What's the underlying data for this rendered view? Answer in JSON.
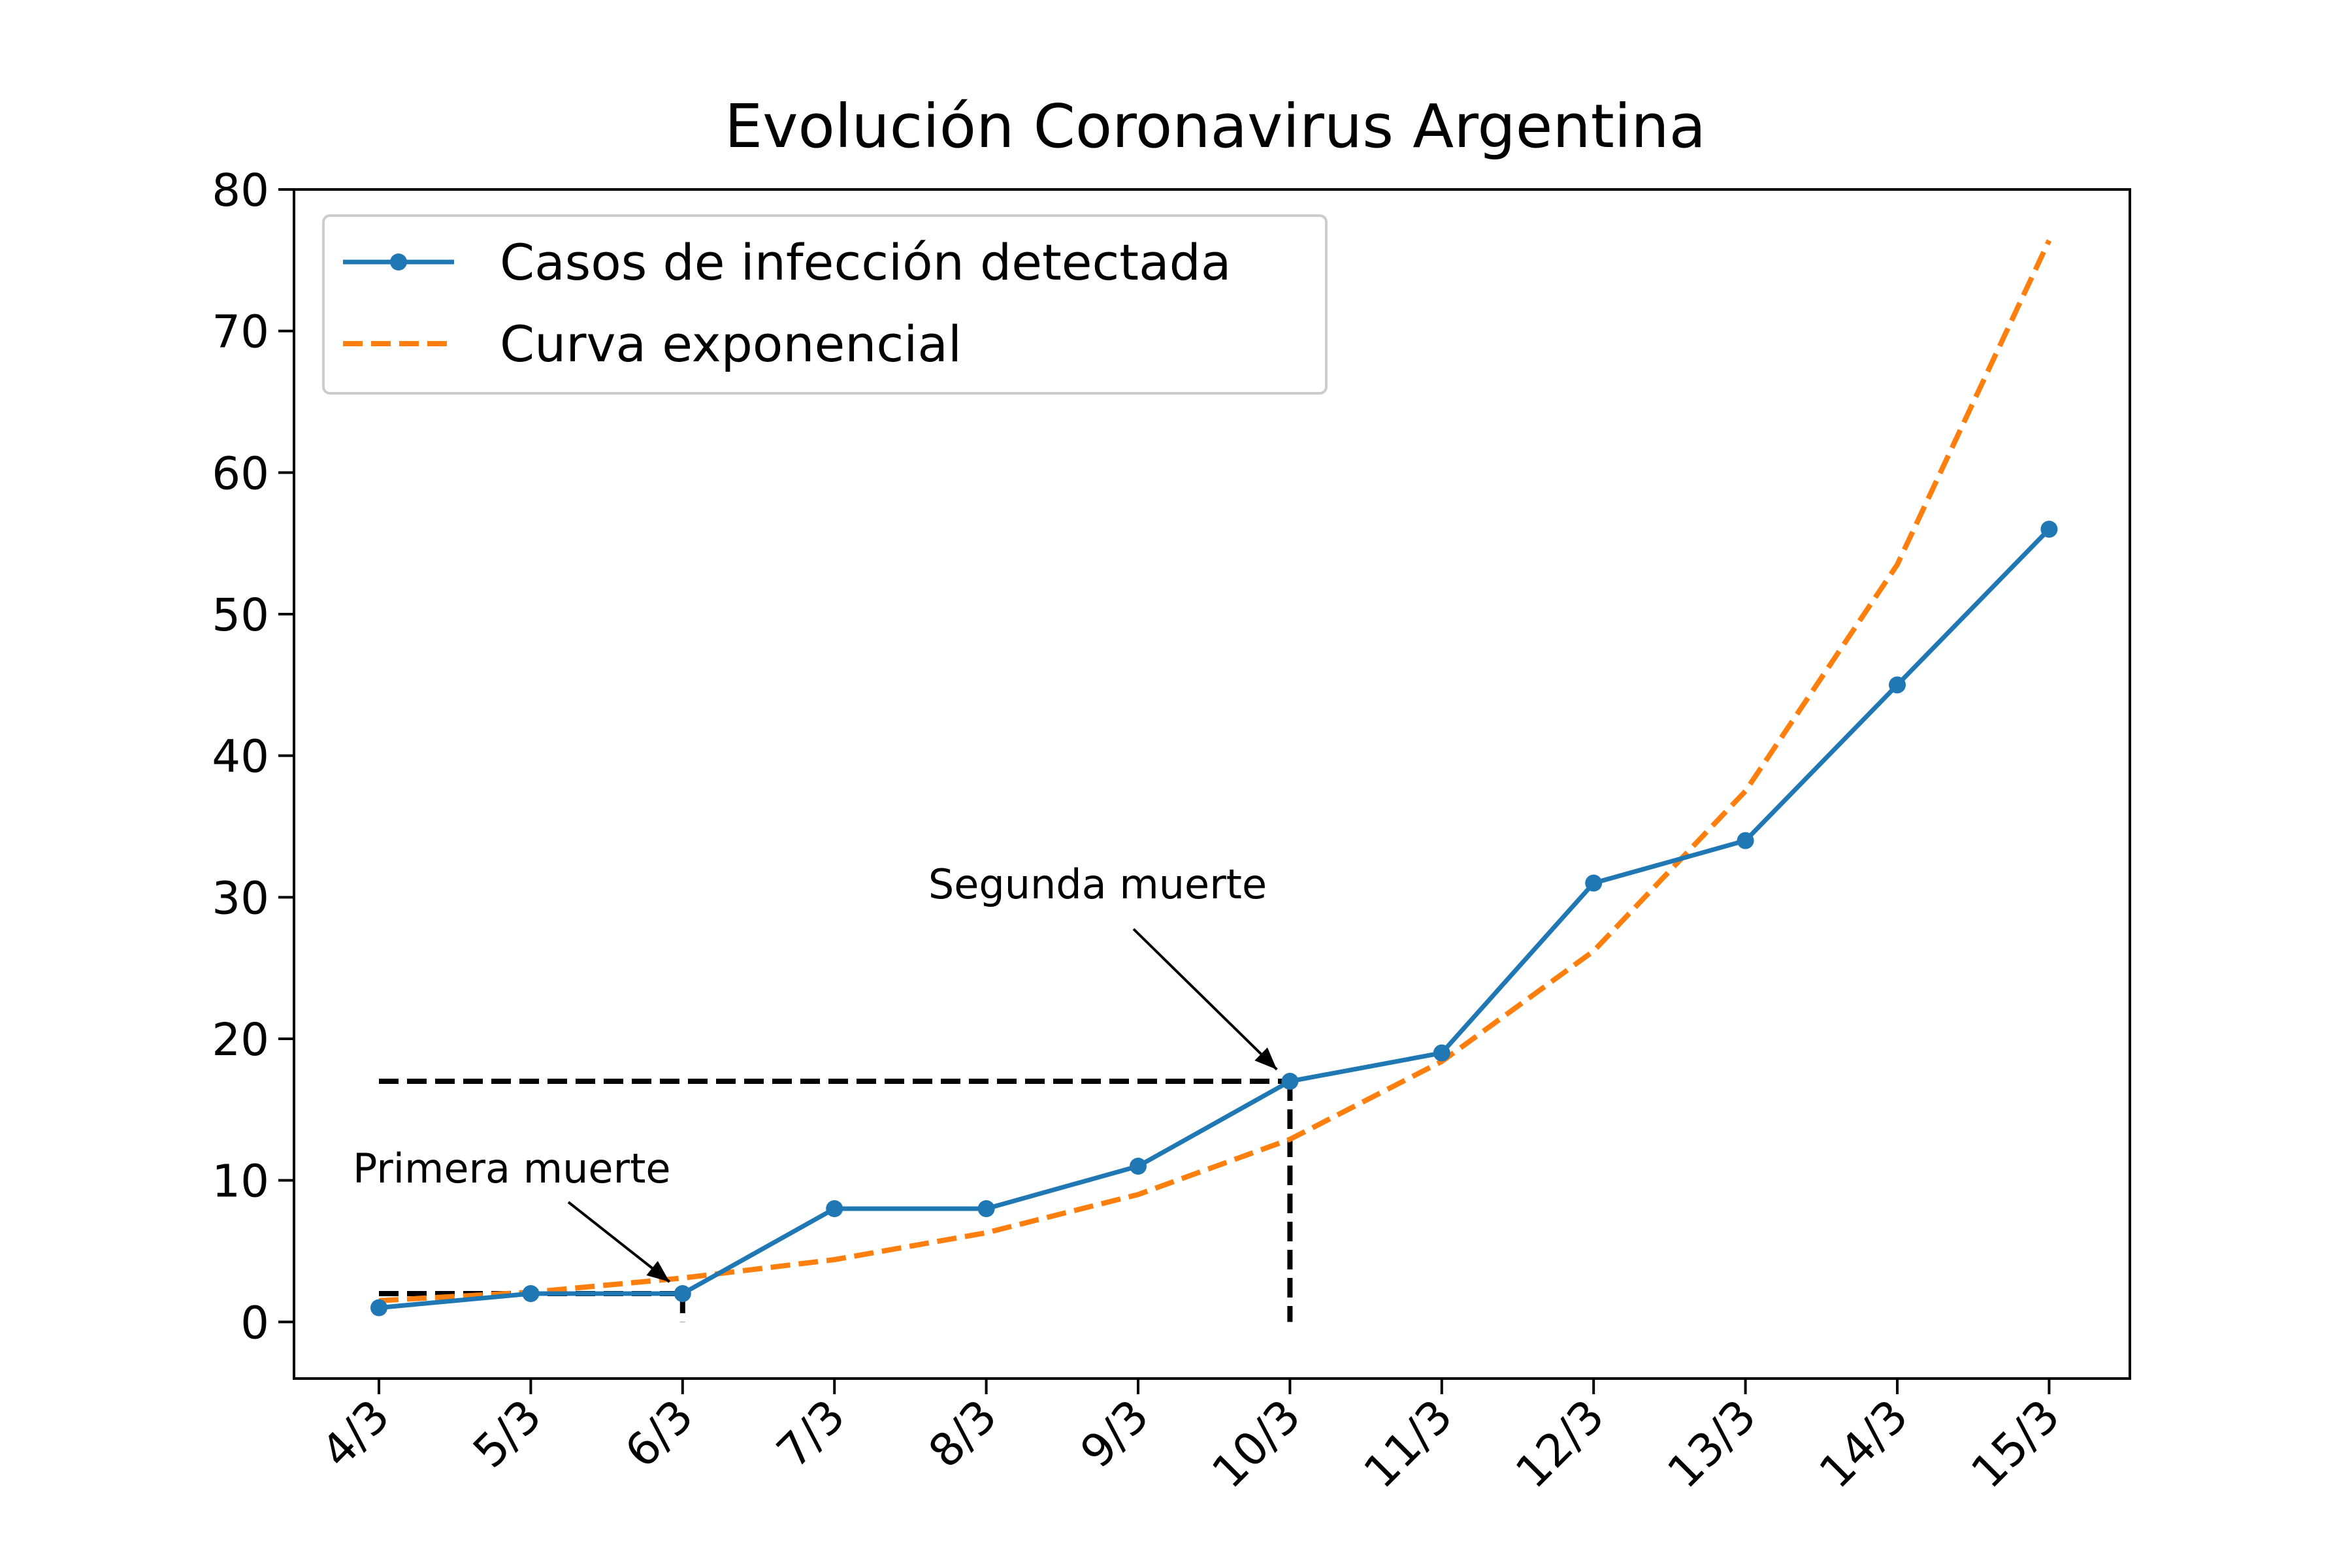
{
  "chart_data": {
    "type": "line",
    "title": "Evolución Coronavirus Argentina",
    "xlabel": "",
    "ylabel": "",
    "categories": [
      "4/3",
      "5/3",
      "6/3",
      "7/3",
      "8/3",
      "9/3",
      "10/3",
      "11/3",
      "12/3",
      "13/3",
      "14/3",
      "15/3"
    ],
    "ylim": [
      -4,
      80
    ],
    "yticks": [
      0,
      10,
      20,
      30,
      40,
      50,
      60,
      70,
      80
    ],
    "grid": false,
    "legend_position": "upper-left",
    "series": [
      {
        "name": "Casos de infección detectada",
        "color": "#1f77b4",
        "style": "solid-with-markers",
        "values": [
          1,
          2,
          2,
          8,
          8,
          11,
          17,
          19,
          31,
          34,
          45,
          56
        ]
      },
      {
        "name": "Curva exponencial",
        "color": "#ff7f0e",
        "style": "dashed",
        "values": [
          1.5,
          2.1,
          3.1,
          4.4,
          6.3,
          9.0,
          12.9,
          18.4,
          26.2,
          37.5,
          53.5,
          76.4
        ]
      }
    ],
    "reference_lines": [
      {
        "category": "6/3",
        "value": 2,
        "color": "#000000",
        "style": "dashed"
      },
      {
        "category": "10/3",
        "value": 17,
        "color": "#000000",
        "style": "dashed"
      }
    ],
    "annotations": [
      {
        "text": "Primera muerte",
        "target_category": "6/3",
        "target_value": 2
      },
      {
        "text": "Segunda muerte",
        "target_category": "10/3",
        "target_value": 17
      }
    ]
  }
}
